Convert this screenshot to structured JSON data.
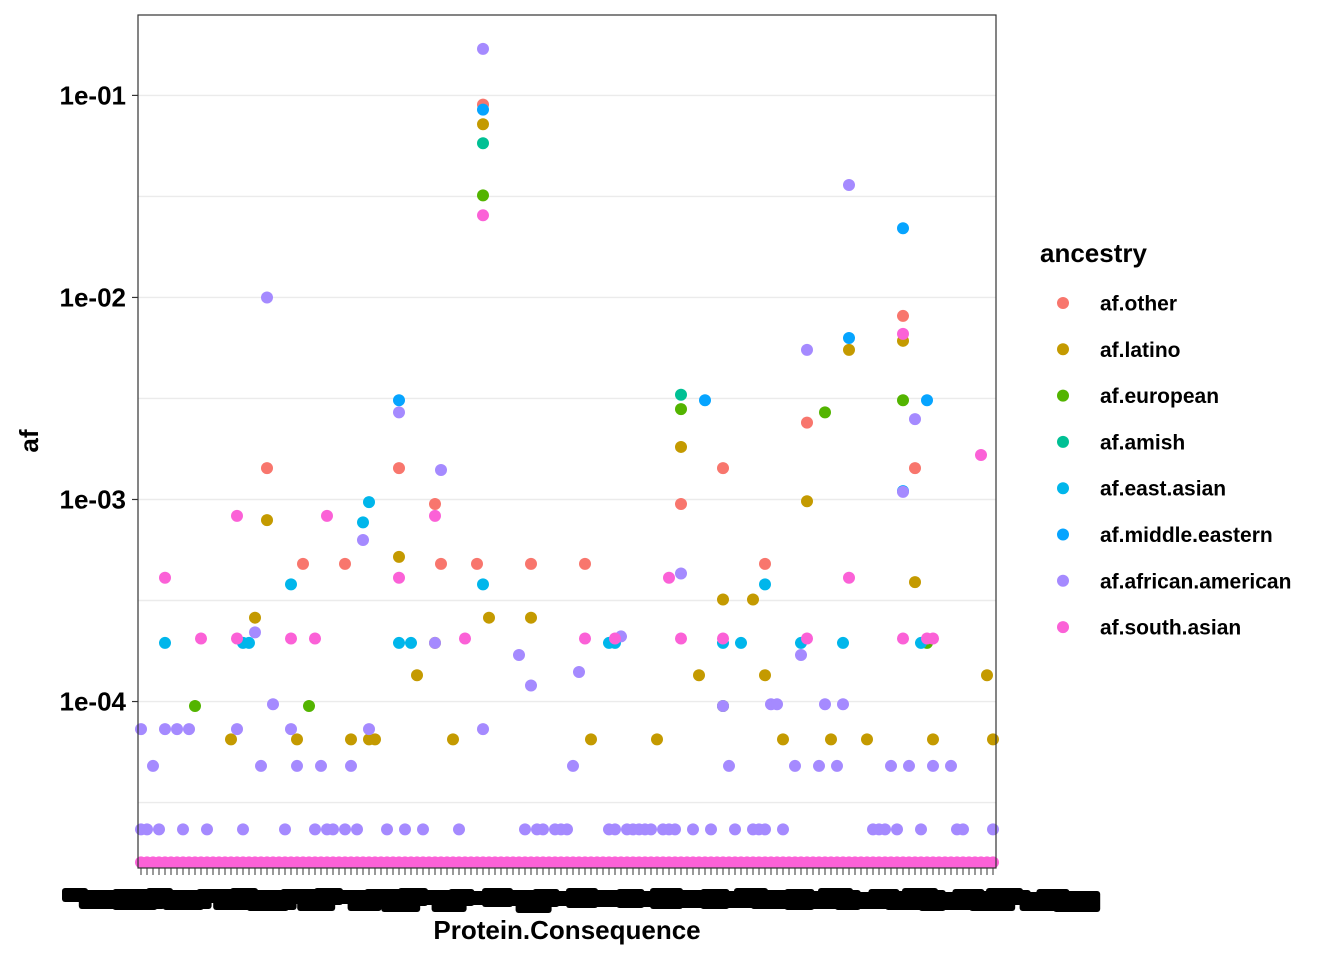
{
  "chart_data": {
    "type": "scatter",
    "title": "",
    "xlabel": "Protein.Consequence",
    "ylabel": "af",
    "y_scale": "log10",
    "ylim": [
      1.5e-05,
      0.25
    ],
    "y_ticks": [
      {
        "value": 0.0001,
        "label": "1e-04"
      },
      {
        "value": 0.001,
        "label": "1e-03"
      },
      {
        "value": 0.01,
        "label": "1e-02"
      },
      {
        "value": 0.1,
        "label": "1e-01"
      }
    ],
    "grid": true,
    "legend": {
      "title": "ancestry",
      "placement": "right"
    },
    "x_category_count": 143,
    "floor_value": 1.6e-05,
    "series": [
      {
        "name": "af.other",
        "color": "#F8766D",
        "points": [
          [
            21,
            0.00143
          ],
          [
            27,
            0.00048
          ],
          [
            34,
            0.00048
          ],
          [
            43,
            0.00143
          ],
          [
            49,
            0.00095
          ],
          [
            50,
            0.00048
          ],
          [
            56,
            0.00048
          ],
          [
            57,
            0.09
          ],
          [
            65,
            0.00048
          ],
          [
            74,
            0.00048
          ],
          [
            90,
            0.00095
          ],
          [
            97,
            0.00143
          ],
          [
            104,
            0.00048
          ],
          [
            111,
            0.0024
          ],
          [
            127,
            0.0081
          ],
          [
            129,
            0.00143
          ]
        ]
      },
      {
        "name": "af.latino",
        "color": "#C49A00",
        "points": [
          [
            15,
            6.5e-05
          ],
          [
            19,
            0.00026
          ],
          [
            21,
            0.00079
          ],
          [
            26,
            6.5e-05
          ],
          [
            35,
            6.5e-05
          ],
          [
            38,
            6.5e-05
          ],
          [
            39,
            6.5e-05
          ],
          [
            43,
            0.00052
          ],
          [
            46,
            0.000135
          ],
          [
            49,
            0.000195
          ],
          [
            52,
            6.5e-05
          ],
          [
            57,
            0.072
          ],
          [
            58,
            0.00026
          ],
          [
            65,
            0.00026
          ],
          [
            75,
            6.5e-05
          ],
          [
            86,
            6.5e-05
          ],
          [
            90,
            0.00182
          ],
          [
            93,
            0.000135
          ],
          [
            97,
            0.00032
          ],
          [
            102,
            0.00032
          ],
          [
            104,
            0.000135
          ],
          [
            107,
            6.5e-05
          ],
          [
            111,
            0.00098
          ],
          [
            115,
            6.5e-05
          ],
          [
            118,
            0.0055
          ],
          [
            121,
            6.5e-05
          ],
          [
            127,
            0.0061
          ],
          [
            129,
            0.00039
          ],
          [
            132,
            6.5e-05
          ],
          [
            141,
            0.000135
          ],
          [
            142,
            6.5e-05
          ]
        ]
      },
      {
        "name": "af.european",
        "color": "#53B400",
        "points": [
          [
            9,
            9.5e-05
          ],
          [
            28,
            9.5e-05
          ],
          [
            57,
            0.032
          ],
          [
            90,
            0.0028
          ],
          [
            97,
            9.5e-05
          ],
          [
            114,
            0.0027
          ],
          [
            127,
            0.0031
          ],
          [
            131,
            0.000195
          ]
        ]
      },
      {
        "name": "af.amish",
        "color": "#00C094",
        "points": [
          [
            57,
            0.058
          ],
          [
            90,
            0.0033
          ]
        ]
      },
      {
        "name": "af.east.asian",
        "color": "#00B6EB",
        "points": [
          [
            4,
            0.000195
          ],
          [
            17,
            0.000195
          ],
          [
            18,
            0.000195
          ],
          [
            25,
            0.00038
          ],
          [
            37,
            0.00077
          ],
          [
            38,
            0.00097
          ],
          [
            43,
            0.000195
          ],
          [
            45,
            0.000195
          ],
          [
            57,
            0.00038
          ],
          [
            78,
            0.000195
          ],
          [
            79,
            0.000195
          ],
          [
            97,
            0.000195
          ],
          [
            100,
            0.000195
          ],
          [
            104,
            0.00038
          ],
          [
            110,
            0.000195
          ],
          [
            117,
            0.000195
          ],
          [
            130,
            0.000195
          ]
        ]
      },
      {
        "name": "af.middle.eastern",
        "color": "#06A4FF",
        "points": [
          [
            43,
            0.0031
          ],
          [
            57,
            0.085
          ],
          [
            94,
            0.0031
          ],
          [
            118,
            0.0063
          ],
          [
            127,
            0.022
          ],
          [
            127,
            0.0011
          ],
          [
            131,
            0.0031
          ]
        ]
      },
      {
        "name": "af.african.american",
        "color": "#A58AFF",
        "points": [
          [
            0,
            2.33e-05
          ],
          [
            0,
            7.3e-05
          ],
          [
            1,
            2.33e-05
          ],
          [
            2,
            4.8e-05
          ],
          [
            3,
            2.33e-05
          ],
          [
            4,
            7.3e-05
          ],
          [
            6,
            7.3e-05
          ],
          [
            7,
            2.33e-05
          ],
          [
            8,
            7.3e-05
          ],
          [
            11,
            2.33e-05
          ],
          [
            16,
            7.3e-05
          ],
          [
            17,
            2.33e-05
          ],
          [
            19,
            0.00022
          ],
          [
            20,
            4.8e-05
          ],
          [
            21,
            0.01
          ],
          [
            22,
            9.7e-05
          ],
          [
            24,
            2.33e-05
          ],
          [
            25,
            7.3e-05
          ],
          [
            26,
            4.8e-05
          ],
          [
            29,
            2.33e-05
          ],
          [
            30,
            4.8e-05
          ],
          [
            31,
            2.33e-05
          ],
          [
            32,
            2.33e-05
          ],
          [
            34,
            2.33e-05
          ],
          [
            35,
            4.8e-05
          ],
          [
            36,
            2.33e-05
          ],
          [
            37,
            0.00063
          ],
          [
            38,
            7.3e-05
          ],
          [
            41,
            2.33e-05
          ],
          [
            43,
            0.0027
          ],
          [
            44,
            2.33e-05
          ],
          [
            47,
            2.33e-05
          ],
          [
            49,
            0.000195
          ],
          [
            50,
            0.0014
          ],
          [
            53,
            2.33e-05
          ],
          [
            57,
            0.17
          ],
          [
            57,
            7.3e-05
          ],
          [
            63,
            0.00017
          ],
          [
            64,
            2.33e-05
          ],
          [
            65,
            0.00012
          ],
          [
            66,
            2.33e-05
          ],
          [
            67,
            2.33e-05
          ],
          [
            69,
            2.33e-05
          ],
          [
            70,
            2.33e-05
          ],
          [
            71,
            2.33e-05
          ],
          [
            72,
            4.8e-05
          ],
          [
            73,
            0.00014
          ],
          [
            78,
            2.33e-05
          ],
          [
            79,
            2.33e-05
          ],
          [
            80,
            0.00021
          ],
          [
            81,
            2.33e-05
          ],
          [
            82,
            2.33e-05
          ],
          [
            83,
            2.33e-05
          ],
          [
            84,
            2.33e-05
          ],
          [
            85,
            2.33e-05
          ],
          [
            87,
            2.33e-05
          ],
          [
            88,
            2.33e-05
          ],
          [
            89,
            2.33e-05
          ],
          [
            90,
            0.00043
          ],
          [
            92,
            2.33e-05
          ],
          [
            95,
            2.33e-05
          ],
          [
            97,
            9.5e-05
          ],
          [
            98,
            4.8e-05
          ],
          [
            99,
            2.33e-05
          ],
          [
            102,
            2.33e-05
          ],
          [
            103,
            2.33e-05
          ],
          [
            104,
            2.33e-05
          ],
          [
            105,
            9.7e-05
          ],
          [
            106,
            9.7e-05
          ],
          [
            107,
            2.33e-05
          ],
          [
            109,
            4.8e-05
          ],
          [
            110,
            0.00017
          ],
          [
            111,
            0.0055
          ],
          [
            113,
            4.8e-05
          ],
          [
            114,
            9.7e-05
          ],
          [
            116,
            4.8e-05
          ],
          [
            117,
            9.7e-05
          ],
          [
            118,
            0.036
          ],
          [
            122,
            2.33e-05
          ],
          [
            123,
            2.33e-05
          ],
          [
            124,
            2.33e-05
          ],
          [
            125,
            4.8e-05
          ],
          [
            126,
            2.33e-05
          ],
          [
            127,
            0.00109
          ],
          [
            128,
            4.8e-05
          ],
          [
            129,
            0.0025
          ],
          [
            130,
            2.33e-05
          ],
          [
            132,
            4.8e-05
          ],
          [
            135,
            4.8e-05
          ],
          [
            136,
            2.33e-05
          ],
          [
            137,
            2.33e-05
          ],
          [
            142,
            2.33e-05
          ]
        ]
      },
      {
        "name": "af.south.asian",
        "color": "#FB61D7",
        "points": [
          [
            4,
            0.00041
          ],
          [
            10,
            0.000205
          ],
          [
            16,
            0.000205
          ],
          [
            16,
            0.00083
          ],
          [
            25,
            0.000205
          ],
          [
            29,
            0.000205
          ],
          [
            31,
            0.00083
          ],
          [
            43,
            0.00041
          ],
          [
            49,
            0.00083
          ],
          [
            54,
            0.000205
          ],
          [
            57,
            0.0255
          ],
          [
            74,
            0.000205
          ],
          [
            79,
            0.000205
          ],
          [
            88,
            0.00041
          ],
          [
            90,
            0.000205
          ],
          [
            97,
            0.000205
          ],
          [
            111,
            0.000205
          ],
          [
            118,
            0.00041
          ],
          [
            127,
            0.0066
          ],
          [
            127,
            0.000205
          ],
          [
            131,
            0.000205
          ],
          [
            132,
            0.000205
          ],
          [
            140,
            0.00166
          ]
        ]
      }
    ]
  }
}
